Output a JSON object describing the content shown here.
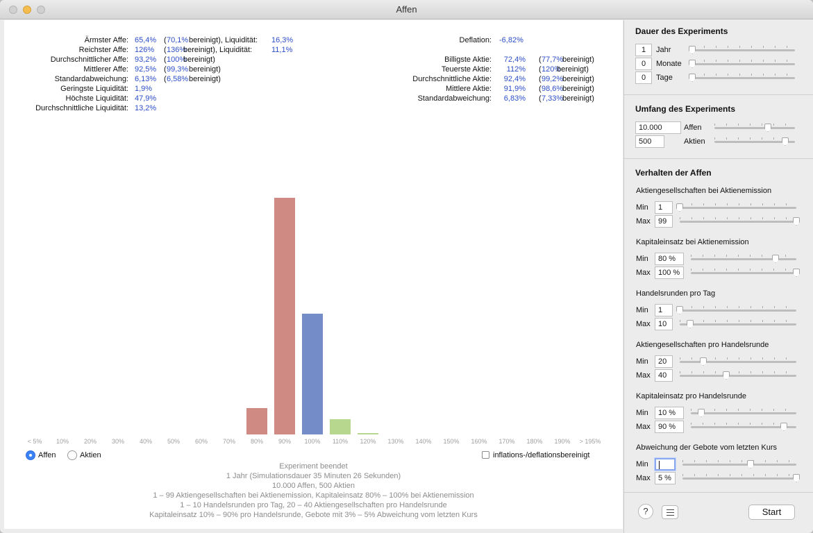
{
  "window": {
    "title": "Affen"
  },
  "stats_left": [
    {
      "label": "Ärmster Affe:",
      "value": "65,4%",
      "adj_open": "(",
      "adj_value": "70,1%",
      "adj_close": " bereinigt), Liquidität:",
      "liq": "16,3%"
    },
    {
      "label": "Reichster Affe:",
      "value": "126%",
      "adj_open": "(",
      "adj_value": "136%",
      "adj_close": " bereinigt), Liquidität:",
      "liq": "11,1%"
    },
    {
      "label": "Durchschnittlicher Affe:",
      "value": "93,2%",
      "adj_open": "(",
      "adj_value": "100%",
      "adj_close": " bereinigt)",
      "liq": ""
    },
    {
      "label": "Mittlerer Affe:",
      "value": "92,5%",
      "adj_open": "(",
      "adj_value": "99,3%",
      "adj_close": " bereinigt)",
      "liq": ""
    },
    {
      "label": "Standardabweichung:",
      "value": "6,13%",
      "adj_open": "(",
      "adj_value": "6,58%",
      "adj_close": " bereinigt)",
      "liq": ""
    },
    {
      "label": "Geringste Liquidität:",
      "value": "1,9%",
      "adj_open": "",
      "adj_value": "",
      "adj_close": "",
      "liq": ""
    },
    {
      "label": "Höchste Liquidität:",
      "value": "47,9%",
      "adj_open": "",
      "adj_value": "",
      "adj_close": "",
      "liq": ""
    },
    {
      "label": "Durchschnittliche Liquidität:",
      "value": "13,2%",
      "adj_open": "",
      "adj_value": "",
      "adj_close": "",
      "liq": ""
    }
  ],
  "deflation": {
    "label": "Deflation:",
    "value": "-6,82%"
  },
  "stats_right": [
    {
      "label": "Billigste Aktie:",
      "value": "72,4%",
      "adj_value": "77,7%"
    },
    {
      "label": "Teuerste Aktie:",
      "value": "112%",
      "adj_value": "120%"
    },
    {
      "label": "Durchschnittliche Aktie:",
      "value": "92,4%",
      "adj_value": "99,2%"
    },
    {
      "label": "Mittlere Aktie:",
      "value": "91,9%",
      "adj_value": "98,6%"
    },
    {
      "label": "Standardabweichung:",
      "value": "6,83%",
      "adj_value": "7,33%"
    }
  ],
  "adj_suffix": " bereinigt)",
  "chart_data": {
    "type": "bar",
    "categories": [
      "< 5%",
      "10%",
      "20%",
      "30%",
      "40%",
      "50%",
      "60%",
      "70%",
      "80%",
      "90%",
      "100%",
      "110%",
      "120%",
      "130%",
      "140%",
      "150%",
      "160%",
      "170%",
      "180%",
      "190%",
      "> 195%"
    ],
    "values": [
      0,
      0,
      0,
      0,
      0,
      0,
      0,
      0,
      38,
      341,
      174,
      22,
      2,
      0,
      0,
      0,
      0,
      0,
      0,
      0,
      0
    ],
    "bar_colors": [
      "#cf8a84",
      "#cf8a84",
      "#cf8a84",
      "#cf8a84",
      "#cf8a84",
      "#cf8a84",
      "#cf8a84",
      "#cf8a84",
      "#cf8a84",
      "#cf8a84",
      "#748dc8",
      "#b8d78e",
      "#b8d78e",
      "#b8d78e",
      "#b8d78e",
      "#b8d78e",
      "#b8d78e",
      "#b8d78e",
      "#b8d78e",
      "#b8d78e",
      "#b8d78e"
    ],
    "grid": false
  },
  "radio": {
    "affen": "Affen",
    "aktien": "Aktien",
    "selected": "affen"
  },
  "checkbox": {
    "label": "inflations-/deflationsbereinigt",
    "checked": false
  },
  "summary": [
    "Experiment beendet",
    "1 Jahr   (Simulationsdauer  35 Minuten  26 Sekunden)",
    "10.000 Affen, 500 Aktien",
    "1 – 99 Aktiengesellschaften bei Aktienemission, Kapitaleinsatz 80% – 100% bei Aktienemission",
    "1 – 10 Handelsrunden pro Tag, 20 – 40 Aktiengesellschaften pro Handelsrunde",
    "Kapitaleinsatz 10% – 90% pro Handelsrunde, Gebote mit 3% – 5% Abweichung vom letzten Kurs"
  ],
  "sidebar": {
    "dauer": {
      "title": "Dauer des Experiments",
      "rows": [
        {
          "value": "1",
          "label": "Jahr",
          "level": 0.0
        },
        {
          "value": "0",
          "label": "Monate",
          "level": 0.0
        },
        {
          "value": "0",
          "label": "Tage",
          "level": 0.0
        }
      ]
    },
    "umfang": {
      "title": "Umfang des Experiments",
      "rows": [
        {
          "value": "10.000",
          "label": "Affen",
          "level": 0.66
        },
        {
          "value": "500",
          "label": "Aktien",
          "level": 0.88
        }
      ]
    },
    "verhalten": {
      "title": "Verhalten der Affen",
      "groups": [
        {
          "title": "Aktiengesellschaften bei Aktienemission",
          "min": "1",
          "max": "99",
          "min_level": 0.0,
          "max_level": 1.0
        },
        {
          "title": "Kapitaleinsatz bei Aktienemission",
          "min": "80 %",
          "max": "100 %",
          "min_level": 0.8,
          "max_level": 1.0
        },
        {
          "title": "Handelsrunden pro Tag",
          "min": "1",
          "max": "10",
          "min_level": 0.0,
          "max_level": 0.09
        },
        {
          "title": "Aktiengesellschaften pro Handelsrunde",
          "min": "20",
          "max": "40",
          "min_level": 0.2,
          "max_level": 0.4
        },
        {
          "title": "Kapitaleinsatz pro Handelsrunde",
          "min": "10 %",
          "max": "90 %",
          "min_level": 0.1,
          "max_level": 0.88
        },
        {
          "title": "Abweichung der Gebote vom letzten Kurs",
          "min": "",
          "max": "5 %",
          "min_level": 0.6,
          "max_level": 1.0
        }
      ],
      "min_label": "Min",
      "max_label": "Max"
    },
    "help_label": "?",
    "start_label": "Start"
  }
}
